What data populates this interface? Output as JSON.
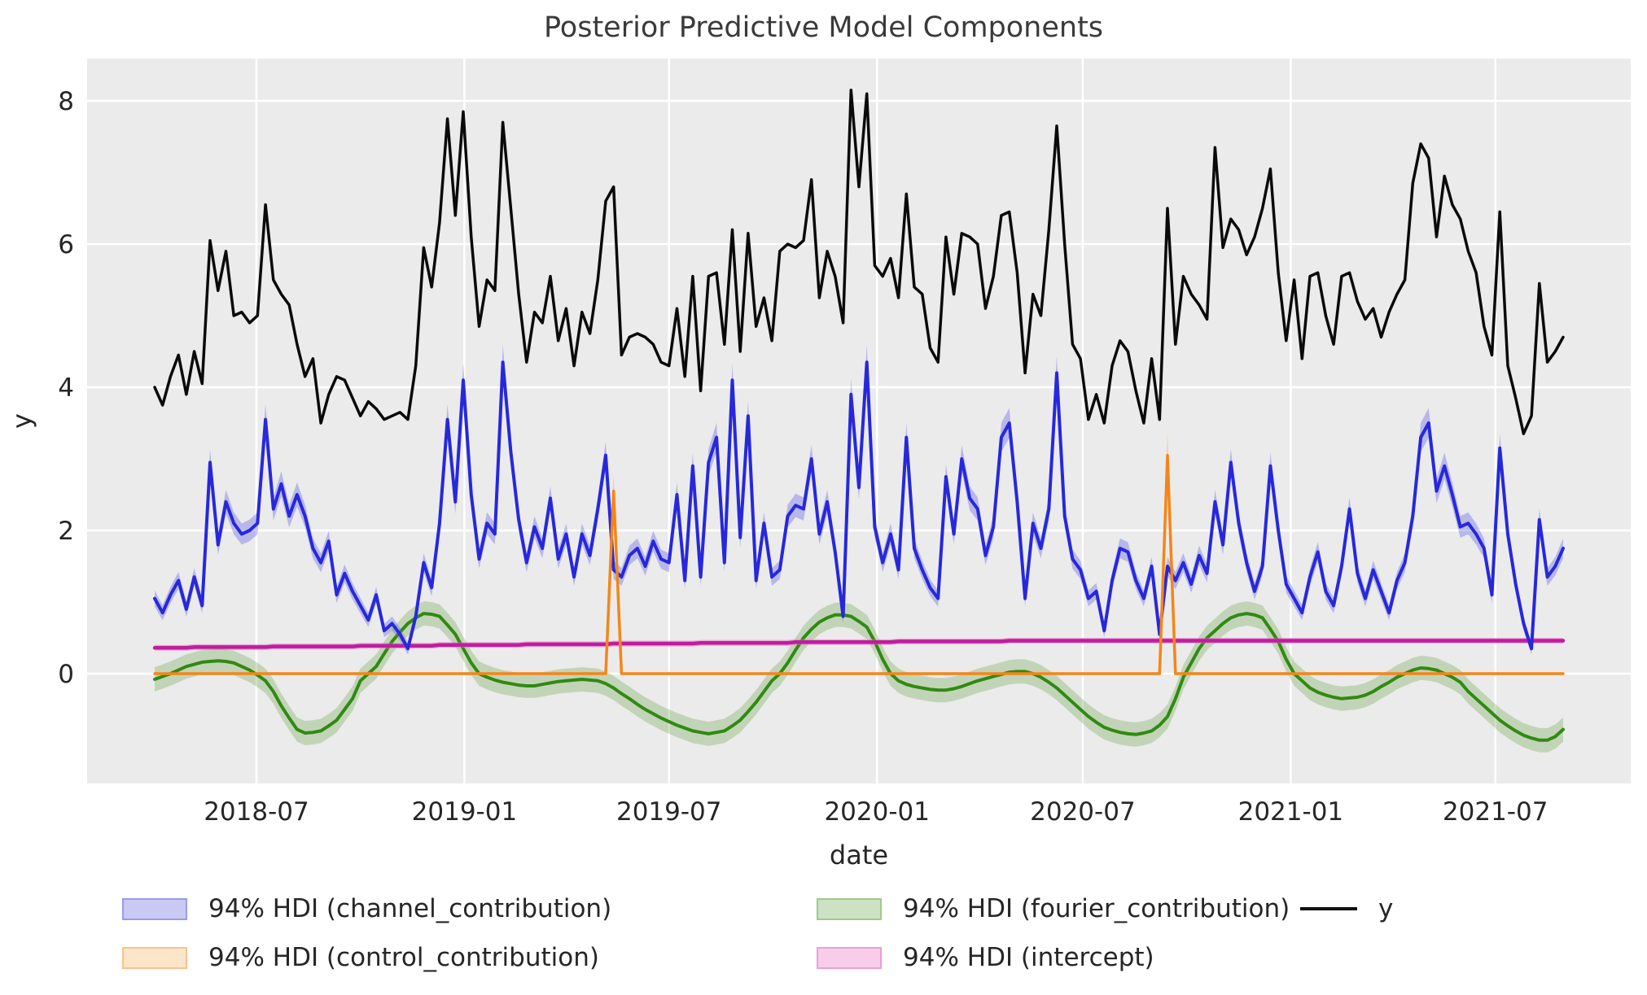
{
  "figure": {
    "title": "Posterior Predictive Model Components",
    "background": "#ffffff",
    "plot_background": "#ebebeb",
    "grid_color": "#ffffff",
    "text_color": "#262626"
  },
  "axes": {
    "x": {
      "label": "date",
      "tick_labels": [
        "2018-07",
        "2019-01",
        "2019-07",
        "2020-01",
        "2020-07",
        "2021-01",
        "2021-07"
      ],
      "tick_dates": [
        "2018-07-01",
        "2019-01-01",
        "2019-07-01",
        "2020-01-01",
        "2020-07-01",
        "2021-01-01",
        "2021-07-01"
      ]
    },
    "y": {
      "label": "y",
      "tick_labels": [
        "0",
        "2",
        "4",
        "6",
        "8"
      ],
      "ticks": [
        0,
        2,
        4,
        6,
        8
      ],
      "range": [
        -1.53,
        8.59
      ]
    }
  },
  "legend": {
    "entries": [
      {
        "label": "94% HDI (channel_contribution)",
        "type": "patch",
        "fill": "#c9caf4",
        "edge": "#999bee",
        "col": 0,
        "row": 0
      },
      {
        "label": "94% HDI (control_contribution)",
        "type": "patch",
        "fill": "#fde5ca",
        "edge": "#f9c18c",
        "col": 0,
        "row": 1
      },
      {
        "label": "94% HDI (fourier_contribution)",
        "type": "patch",
        "fill": "#cde2c2",
        "edge": "#9fca8d",
        "col": 1,
        "row": 0
      },
      {
        "label": "94% HDI (intercept)",
        "type": "patch",
        "fill": "#f7cdea",
        "edge": "#eb9fd4",
        "col": 1,
        "row": 1
      },
      {
        "label": "y",
        "type": "line",
        "color": "#111111",
        "col": 2,
        "row": 0
      }
    ]
  },
  "chart_data": {
    "type": "line",
    "title": "Posterior Predictive Model Components",
    "xlabel": "date",
    "ylabel": "y",
    "x_start_date": "2018-04-02",
    "x_end_date": "2021-08-30",
    "frequency": "weekly",
    "n_points": 179,
    "grid": true,
    "legend_position": "below",
    "series": [
      {
        "name": "y",
        "legend_label": "y",
        "style": "line",
        "color": "#0a0a0a",
        "width": 3.5,
        "values": [
          4.0,
          3.75,
          4.15,
          4.45,
          3.9,
          4.5,
          4.05,
          6.05,
          5.35,
          5.9,
          5.0,
          5.05,
          4.9,
          5.0,
          6.55,
          5.5,
          5.3,
          5.15,
          4.6,
          4.15,
          4.4,
          3.5,
          3.9,
          4.15,
          4.1,
          3.85,
          3.6,
          3.8,
          3.7,
          3.55,
          3.6,
          3.65,
          3.55,
          4.3,
          5.95,
          5.4,
          6.3,
          7.75,
          6.4,
          7.85,
          6.1,
          4.85,
          5.5,
          5.35,
          7.7,
          6.5,
          5.3,
          4.35,
          5.05,
          4.9,
          5.55,
          4.65,
          5.1,
          4.3,
          5.05,
          4.75,
          5.5,
          6.6,
          6.8,
          4.45,
          4.7,
          4.75,
          4.7,
          4.6,
          4.35,
          4.3,
          5.1,
          4.15,
          5.55,
          3.95,
          5.55,
          5.6,
          4.6,
          6.2,
          4.5,
          6.15,
          4.85,
          5.25,
          4.65,
          5.9,
          6.0,
          5.95,
          6.05,
          6.9,
          5.25,
          5.9,
          5.55,
          4.9,
          8.15,
          6.8,
          8.1,
          5.7,
          5.55,
          5.8,
          5.25,
          6.7,
          5.4,
          5.3,
          4.55,
          4.35,
          6.1,
          5.3,
          6.15,
          6.1,
          6.0,
          5.1,
          5.55,
          6.4,
          6.45,
          5.6,
          4.2,
          5.3,
          5.0,
          6.2,
          7.65,
          6.0,
          4.6,
          4.4,
          3.55,
          3.9,
          3.5,
          4.3,
          4.65,
          4.5,
          3.95,
          3.5,
          4.4,
          3.55,
          6.5,
          4.6,
          5.55,
          5.3,
          5.15,
          4.95,
          7.35,
          5.95,
          6.35,
          6.2,
          5.85,
          6.1,
          6.5,
          7.05,
          5.6,
          4.65,
          5.5,
          4.4,
          5.55,
          5.6,
          5.0,
          4.6,
          5.55,
          5.6,
          5.2,
          4.95,
          5.1,
          4.7,
          5.05,
          5.3,
          5.5,
          6.85,
          7.4,
          7.2,
          6.1,
          6.95,
          6.55,
          6.35,
          5.9,
          5.6,
          4.85,
          4.45,
          6.45,
          4.3,
          3.85,
          3.35,
          3.6,
          5.45,
          4.35,
          4.5,
          4.7
        ]
      },
      {
        "name": "channel_contribution",
        "legend_label": "94% HDI (channel_contribution)",
        "style": "line+band",
        "color": "#2728dc",
        "width": 4,
        "band_fill": "rgba(100,100,235,0.38)",
        "band_base": 0.07,
        "band_scale": 0.04,
        "values": [
          1.05,
          0.85,
          1.1,
          1.3,
          0.9,
          1.35,
          0.95,
          2.95,
          1.8,
          2.4,
          2.1,
          1.95,
          2.0,
          2.1,
          3.55,
          2.3,
          2.65,
          2.2,
          2.5,
          2.2,
          1.75,
          1.55,
          1.85,
          1.1,
          1.4,
          1.15,
          0.95,
          0.75,
          1.1,
          0.6,
          0.7,
          0.55,
          0.35,
          0.8,
          1.55,
          1.2,
          2.1,
          3.55,
          2.4,
          4.1,
          2.5,
          1.6,
          2.1,
          1.95,
          4.35,
          3.1,
          2.15,
          1.55,
          2.05,
          1.75,
          2.45,
          1.6,
          1.95,
          1.35,
          1.95,
          1.65,
          2.3,
          3.05,
          1.45,
          1.35,
          1.65,
          1.75,
          1.5,
          1.85,
          1.6,
          1.55,
          2.5,
          1.3,
          2.9,
          1.35,
          2.95,
          3.3,
          1.55,
          4.1,
          1.9,
          3.6,
          1.3,
          2.1,
          1.35,
          1.45,
          2.2,
          2.35,
          2.3,
          3.0,
          1.95,
          2.4,
          1.7,
          0.8,
          3.9,
          2.6,
          4.35,
          2.05,
          1.55,
          1.95,
          1.45,
          3.3,
          1.75,
          1.45,
          1.2,
          1.05,
          2.75,
          1.95,
          3.0,
          2.45,
          2.3,
          1.65,
          2.05,
          3.3,
          3.5,
          2.4,
          1.05,
          2.1,
          1.75,
          2.3,
          4.2,
          2.2,
          1.6,
          1.45,
          1.05,
          1.15,
          0.6,
          1.3,
          1.75,
          1.7,
          1.3,
          1.05,
          1.5,
          0.55,
          1.5,
          1.3,
          1.55,
          1.25,
          1.65,
          1.4,
          2.4,
          1.8,
          2.95,
          2.1,
          1.55,
          1.15,
          1.5,
          2.9,
          2.0,
          1.25,
          1.05,
          0.85,
          1.35,
          1.7,
          1.15,
          0.95,
          1.5,
          2.3,
          1.4,
          1.05,
          1.45,
          1.15,
          0.85,
          1.3,
          1.55,
          2.2,
          3.3,
          3.5,
          2.55,
          2.9,
          2.5,
          2.05,
          2.1,
          1.95,
          1.75,
          1.1,
          3.15,
          1.95,
          1.25,
          0.7,
          0.35,
          2.15,
          1.35,
          1.5,
          1.75
        ]
      },
      {
        "name": "control_contribution",
        "legend_label": "94% HDI (control_contribution)",
        "style": "line+band",
        "color": "#f58518",
        "width": 3.5,
        "band_fill": "rgba(250,160,70,0.45)",
        "band_base": 0.01,
        "band_scale": 0.1,
        "spike_dates": [
          "2019-05-13",
          "2020-09-14"
        ],
        "values": [
          0,
          0,
          0,
          0,
          0,
          0,
          0,
          0,
          0,
          0,
          0,
          0,
          0,
          0,
          0,
          0,
          0,
          0,
          0,
          0,
          0,
          0,
          0,
          0,
          0,
          0,
          0,
          0,
          0,
          0,
          0,
          0,
          0,
          0,
          0,
          0,
          0,
          0,
          0,
          0,
          0,
          0,
          0,
          0,
          0,
          0,
          0,
          0,
          0,
          0,
          0,
          0,
          0,
          0,
          0,
          0,
          0,
          0,
          2.55,
          0,
          0,
          0,
          0,
          0,
          0,
          0,
          0,
          0,
          0,
          0,
          0,
          0,
          0,
          0,
          0,
          0,
          0,
          0,
          0,
          0,
          0,
          0,
          0,
          0,
          0,
          0,
          0,
          0,
          0,
          0,
          0,
          0,
          0,
          0,
          0,
          0,
          0,
          0,
          0,
          0,
          0,
          0,
          0,
          0,
          0,
          0,
          0,
          0,
          0,
          0,
          0,
          0,
          0,
          0,
          0,
          0,
          0,
          0,
          0,
          0,
          0,
          0,
          0,
          0,
          0,
          0,
          0,
          0,
          3.05,
          0,
          0,
          0,
          0,
          0,
          0,
          0,
          0,
          0,
          0,
          0,
          0,
          0,
          0,
          0,
          0,
          0,
          0,
          0,
          0,
          0,
          0,
          0,
          0,
          0,
          0,
          0,
          0,
          0,
          0,
          0,
          0,
          0,
          0,
          0,
          0,
          0,
          0,
          0,
          0,
          0,
          0,
          0,
          0,
          0,
          0,
          0,
          0,
          0,
          0
        ]
      },
      {
        "name": "fourier_contribution",
        "legend_label": "94% HDI (fourier_contribution)",
        "style": "line+band",
        "color": "#308a12",
        "width": 4,
        "band_fill": "rgba(110,165,75,0.32)",
        "band_base": 0.17,
        "band_scale": 0,
        "values": [
          -0.08,
          -0.04,
          0.0,
          0.05,
          0.1,
          0.13,
          0.16,
          0.17,
          0.18,
          0.17,
          0.15,
          0.1,
          0.05,
          -0.02,
          -0.1,
          -0.25,
          -0.45,
          -0.62,
          -0.78,
          -0.83,
          -0.82,
          -0.8,
          -0.73,
          -0.65,
          -0.5,
          -0.35,
          -0.1,
          0.0,
          0.1,
          0.28,
          0.45,
          0.58,
          0.7,
          0.78,
          0.84,
          0.83,
          0.8,
          0.68,
          0.55,
          0.35,
          0.15,
          0.0,
          -0.05,
          -0.09,
          -0.12,
          -0.14,
          -0.16,
          -0.17,
          -0.17,
          -0.15,
          -0.13,
          -0.11,
          -0.1,
          -0.09,
          -0.08,
          -0.09,
          -0.1,
          -0.14,
          -0.2,
          -0.28,
          -0.35,
          -0.43,
          -0.5,
          -0.56,
          -0.62,
          -0.67,
          -0.72,
          -0.76,
          -0.8,
          -0.82,
          -0.84,
          -0.82,
          -0.8,
          -0.73,
          -0.65,
          -0.53,
          -0.4,
          -0.25,
          -0.1,
          0.0,
          0.15,
          0.33,
          0.5,
          0.62,
          0.72,
          0.78,
          0.82,
          0.82,
          0.8,
          0.73,
          0.65,
          0.45,
          0.2,
          0.0,
          -0.1,
          -0.15,
          -0.18,
          -0.2,
          -0.22,
          -0.23,
          -0.23,
          -0.21,
          -0.18,
          -0.14,
          -0.1,
          -0.07,
          -0.04,
          -0.01,
          0.02,
          0.03,
          0.03,
          0.0,
          -0.05,
          -0.12,
          -0.2,
          -0.3,
          -0.4,
          -0.5,
          -0.6,
          -0.68,
          -0.75,
          -0.79,
          -0.82,
          -0.84,
          -0.85,
          -0.83,
          -0.8,
          -0.72,
          -0.6,
          -0.35,
          -0.05,
          0.15,
          0.35,
          0.5,
          0.6,
          0.7,
          0.78,
          0.82,
          0.84,
          0.82,
          0.78,
          0.62,
          0.45,
          0.2,
          0.0,
          -0.1,
          -0.2,
          -0.26,
          -0.3,
          -0.33,
          -0.35,
          -0.34,
          -0.33,
          -0.3,
          -0.25,
          -0.18,
          -0.12,
          -0.05,
          0.0,
          0.05,
          0.08,
          0.07,
          0.05,
          0.0,
          -0.05,
          -0.12,
          -0.25,
          -0.35,
          -0.45,
          -0.55,
          -0.65,
          -0.73,
          -0.8,
          -0.86,
          -0.9,
          -0.93,
          -0.93,
          -0.88,
          -0.78
        ]
      },
      {
        "name": "intercept",
        "legend_label": "94% HDI (intercept)",
        "style": "line+band",
        "color": "#c01d9e",
        "width": 4.5,
        "band_fill": "rgba(225,105,195,0.5)",
        "band_base": 0.04,
        "band_scale": 0,
        "values": [
          0.36,
          0.36,
          0.36,
          0.36,
          0.36,
          0.37,
          0.37,
          0.37,
          0.37,
          0.37,
          0.37,
          0.37,
          0.37,
          0.37,
          0.37,
          0.38,
          0.38,
          0.38,
          0.38,
          0.38,
          0.38,
          0.38,
          0.38,
          0.38,
          0.38,
          0.38,
          0.39,
          0.39,
          0.39,
          0.39,
          0.39,
          0.39,
          0.39,
          0.39,
          0.39,
          0.39,
          0.4,
          0.4,
          0.4,
          0.4,
          0.4,
          0.4,
          0.4,
          0.4,
          0.4,
          0.4,
          0.4,
          0.41,
          0.41,
          0.41,
          0.41,
          0.41,
          0.41,
          0.41,
          0.41,
          0.41,
          0.41,
          0.41,
          0.42,
          0.42,
          0.42,
          0.42,
          0.42,
          0.42,
          0.42,
          0.42,
          0.42,
          0.42,
          0.42,
          0.43,
          0.43,
          0.43,
          0.43,
          0.43,
          0.43,
          0.43,
          0.43,
          0.43,
          0.43,
          0.43,
          0.43,
          0.44,
          0.44,
          0.44,
          0.44,
          0.44,
          0.44,
          0.44,
          0.44,
          0.44,
          0.44,
          0.44,
          0.44,
          0.44,
          0.45,
          0.45,
          0.45,
          0.45,
          0.45,
          0.45,
          0.45,
          0.45,
          0.45,
          0.45,
          0.45,
          0.45,
          0.45,
          0.45,
          0.46,
          0.46,
          0.46,
          0.46,
          0.46,
          0.46,
          0.46,
          0.46,
          0.46,
          0.46,
          0.46,
          0.46,
          0.46,
          0.46,
          0.46,
          0.46,
          0.46,
          0.46,
          0.46,
          0.46,
          0.46,
          0.46,
          0.46,
          0.46,
          0.46,
          0.46,
          0.46,
          0.46,
          0.46,
          0.46,
          0.46,
          0.46,
          0.46,
          0.46,
          0.46,
          0.46,
          0.46,
          0.46,
          0.46,
          0.46,
          0.46,
          0.46,
          0.46,
          0.46,
          0.46,
          0.46,
          0.46,
          0.46,
          0.46,
          0.46,
          0.46,
          0.46,
          0.46,
          0.46,
          0.46,
          0.46,
          0.46,
          0.46,
          0.46,
          0.46,
          0.46,
          0.46,
          0.46,
          0.46,
          0.46,
          0.46,
          0.46,
          0.46,
          0.46,
          0.46,
          0.46
        ]
      }
    ]
  }
}
